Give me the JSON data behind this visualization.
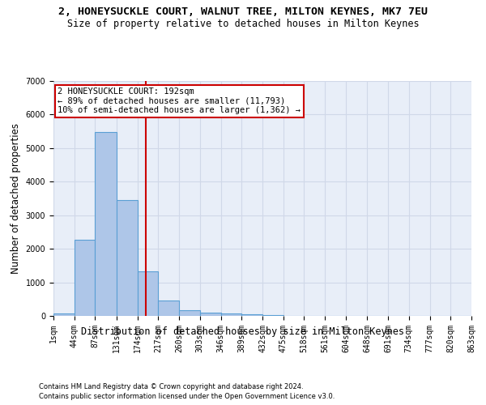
{
  "title": "2, HONEYSUCKLE COURT, WALNUT TREE, MILTON KEYNES, MK7 7EU",
  "subtitle": "Size of property relative to detached houses in Milton Keynes",
  "xlabel": "Distribution of detached houses by size in Milton Keynes",
  "ylabel": "Number of detached properties",
  "footnote1": "Contains HM Land Registry data © Crown copyright and database right 2024.",
  "footnote2": "Contains public sector information licensed under the Open Government Licence v3.0.",
  "bin_edges": [
    1,
    44,
    87,
    131,
    174,
    217,
    260,
    303,
    346,
    389,
    432,
    475,
    518,
    561,
    604,
    648,
    691,
    734,
    777,
    820,
    863
  ],
  "bar_heights": [
    75,
    2280,
    5480,
    3450,
    1320,
    470,
    165,
    100,
    65,
    40,
    20,
    10,
    5,
    3,
    2,
    1,
    1,
    0,
    0,
    0
  ],
  "bar_color": "#aec6e8",
  "bar_edge_color": "#5a9fd4",
  "grid_color": "#d0d8e8",
  "bg_color": "#e8eef8",
  "property_size": 192,
  "red_line_color": "#cc0000",
  "annotation_text": "2 HONEYSUCKLE COURT: 192sqm\n← 89% of detached houses are smaller (11,793)\n10% of semi-detached houses are larger (1,362) →",
  "annotation_box_color": "#cc0000",
  "ylim": [
    0,
    7000
  ],
  "yticks": [
    0,
    1000,
    2000,
    3000,
    4000,
    5000,
    6000,
    7000
  ],
  "title_fontsize": 9.5,
  "subtitle_fontsize": 8.5,
  "axis_label_fontsize": 8.5,
  "ylabel_fontsize": 8.5,
  "tick_fontsize": 7,
  "annotation_fontsize": 7.5,
  "footnote_fontsize": 6
}
